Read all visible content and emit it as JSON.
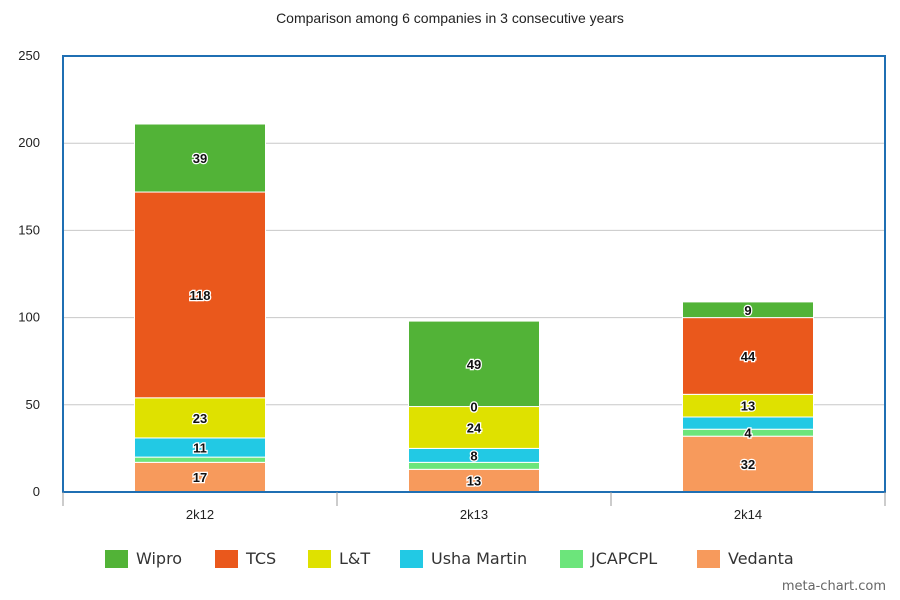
{
  "chart_data": {
    "type": "bar",
    "stacked": true,
    "title": "Comparison among 6 companies in 3 consecutive years",
    "categories": [
      "2k12",
      "2k13",
      "2k14"
    ],
    "ylim": [
      0,
      250
    ],
    "yticks": [
      0,
      50,
      100,
      150,
      200,
      250
    ],
    "grid": true,
    "legend_position": "bottom",
    "series": [
      {
        "name": "Vedanta",
        "color": "#f79a5c",
        "values": [
          17,
          13,
          32
        ]
      },
      {
        "name": "JCAPCPL",
        "color": "#6ce57b",
        "values": [
          3,
          4,
          4
        ]
      },
      {
        "name": "Usha Martin",
        "color": "#22c9e4",
        "values": [
          11,
          8,
          7
        ]
      },
      {
        "name": "L&T",
        "color": "#dfe100",
        "values": [
          23,
          24,
          13
        ]
      },
      {
        "name": "TCS",
        "color": "#ea581c",
        "values": [
          118,
          0,
          44
        ]
      },
      {
        "name": "Wipro",
        "color": "#52b337",
        "values": [
          39,
          49,
          9
        ]
      }
    ],
    "data_labels": [
      [
        "17",
        "13",
        "32"
      ],
      [
        "",
        "",
        "4"
      ],
      [
        "11",
        "8",
        ""
      ],
      [
        "23",
        "24",
        "13"
      ],
      [
        "118",
        "0",
        "44"
      ],
      [
        "39",
        "49",
        "9"
      ]
    ],
    "legend_order": [
      "Wipro",
      "TCS",
      "L&T",
      "Usha Martin",
      "JCAPCPL",
      "Vedanta"
    ]
  },
  "watermark": "meta-chart.com",
  "colors": {
    "frame": "#1f6fb3",
    "grid": "#c8c8c8"
  }
}
